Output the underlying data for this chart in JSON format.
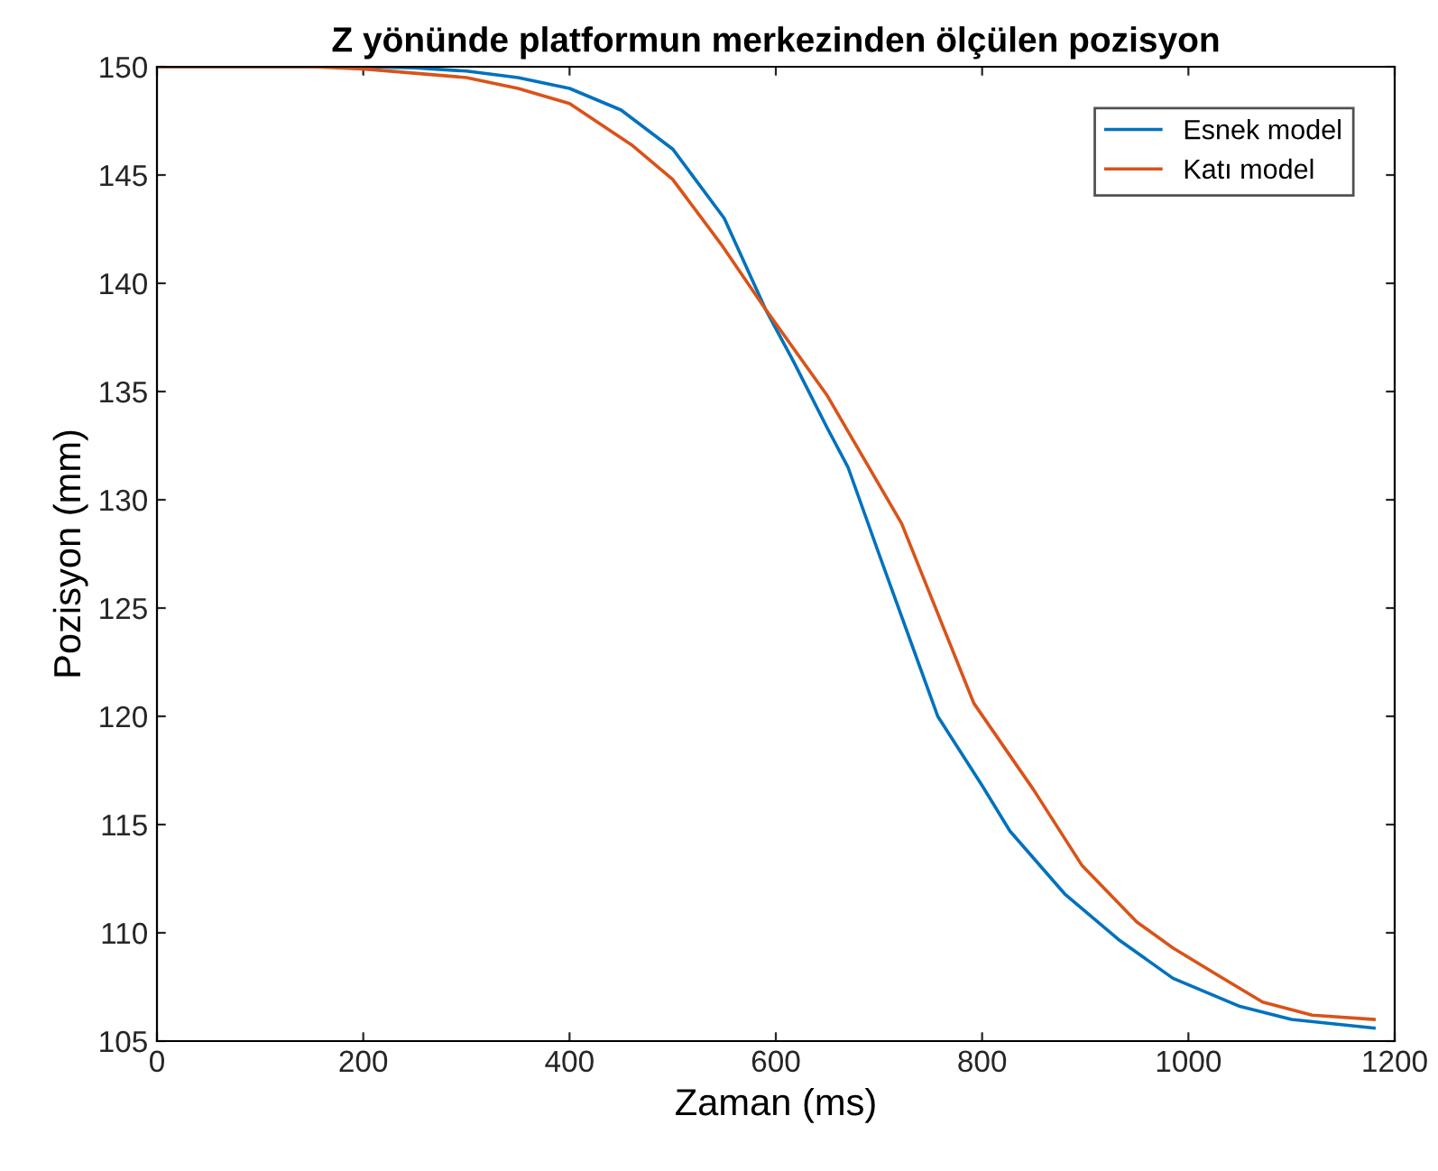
{
  "chart_data": {
    "type": "line",
    "title": "Z yönünde platformun merkezinden ölçülen pozisyon",
    "xlabel": "Zaman (ms)",
    "ylabel": "Pozisyon (mm)",
    "series": [
      {
        "name": "Esnek model",
        "color": "#0072bd",
        "x": [
          0,
          200,
          250,
          300,
          350,
          400,
          450,
          500,
          550,
          590,
          617,
          650,
          670,
          700,
          757,
          800,
          827,
          880,
          932,
          985,
          1050,
          1100,
          1180
        ],
        "values": [
          150,
          150,
          149.95,
          149.8,
          149.5,
          149.0,
          148.0,
          146.2,
          143.0,
          138.8,
          136.4,
          133.3,
          131.5,
          127.5,
          120.0,
          116.8,
          114.7,
          111.8,
          109.7,
          107.9,
          106.6,
          106.0,
          105.6
        ]
      },
      {
        "name": "Katı model",
        "color": "#d95319",
        "x": [
          0,
          150,
          200,
          300,
          350,
          400,
          460,
          500,
          547,
          590,
          650,
          722,
          792,
          850,
          897,
          950,
          985,
          1030,
          1072,
          1120,
          1180
        ],
        "values": [
          150,
          150,
          149.9,
          149.5,
          149.0,
          148.3,
          146.4,
          144.8,
          141.8,
          138.8,
          134.8,
          128.9,
          120.6,
          116.6,
          113.1,
          110.5,
          109.3,
          108.0,
          106.8,
          106.2,
          106.0
        ]
      }
    ],
    "xlim": [
      0,
      1200
    ],
    "xticks": [
      0,
      200,
      400,
      600,
      800,
      1000,
      1200
    ],
    "ylim": [
      105,
      150
    ],
    "yticks": [
      105,
      110,
      115,
      120,
      125,
      130,
      135,
      140,
      145,
      150
    ],
    "grid": false,
    "legend": "top right",
    "marker": "none",
    "line_style": "solid"
  }
}
